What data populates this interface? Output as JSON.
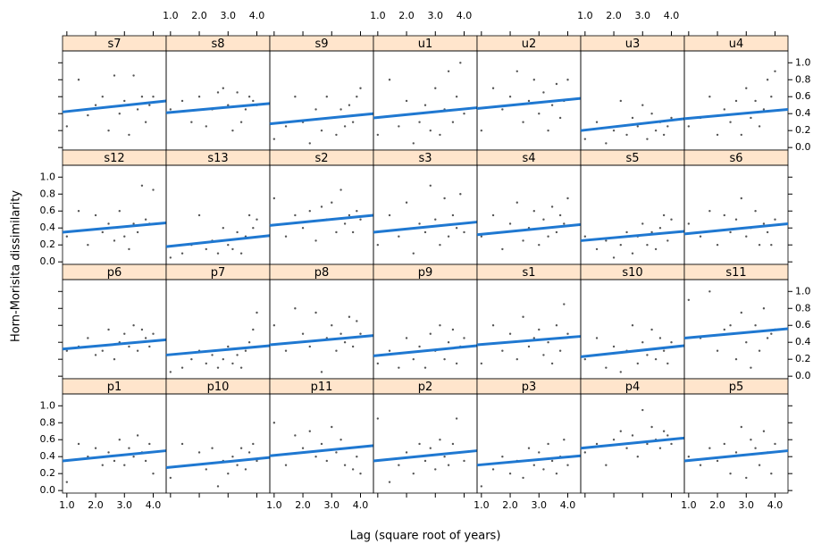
{
  "xlabel": "Lag (square root of years)",
  "ylabel": "Horn-Morisita dissimilarity",
  "xlim": [
    0.85,
    4.45
  ],
  "ylim": [
    -0.03,
    1.14
  ],
  "xticks": [
    {
      "value": 1,
      "label": "1.0"
    },
    {
      "value": 2,
      "label": "2.0"
    },
    {
      "value": 3,
      "label": "3.0"
    },
    {
      "value": 4,
      "label": "4.0"
    }
  ],
  "yticks": [
    {
      "value": 0,
      "label": "0.0"
    },
    {
      "value": 0.2,
      "label": "0.2"
    },
    {
      "value": 0.4,
      "label": "0.4"
    },
    {
      "value": 0.6,
      "label": "0.6"
    },
    {
      "value": 0.8,
      "label": "0.8"
    },
    {
      "value": 1,
      "label": "1.0"
    }
  ],
  "x": [
    1,
    1.41,
    1.73,
    2,
    2.24,
    2.45,
    2.65,
    2.83,
    3,
    3.16,
    3.32,
    3.46,
    3.61,
    3.74,
    3.87,
    4
  ],
  "line_x": [
    0.85,
    4.45
  ],
  "point_color": "#555555",
  "line_color": "#1f78d1",
  "chart_data": [
    {
      "type": "scatter",
      "title": "s7",
      "values": [
        0.25,
        0.8,
        0.38,
        0.5,
        0.6,
        0.2,
        0.85,
        0.4,
        0.55,
        0.15,
        0.85,
        0.45,
        0.6,
        0.3,
        0.5,
        0.6
      ],
      "line": [
        0.42,
        0.55
      ]
    },
    {
      "type": "scatter",
      "title": "s8",
      "values": [
        0.45,
        0.55,
        0.3,
        0.6,
        0.25,
        0.45,
        0.65,
        0.7,
        0.5,
        0.2,
        0.65,
        0.3,
        0.45,
        0.6,
        0.55,
        0.5
      ],
      "line": [
        0.41,
        0.52
      ]
    },
    {
      "type": "scatter",
      "title": "s9",
      "values": [
        0.1,
        0.25,
        0.6,
        0.3,
        0.05,
        0.45,
        0.2,
        0.6,
        0.35,
        0.15,
        0.45,
        0.25,
        0.5,
        0.3,
        0.6,
        0.7
      ],
      "line": [
        0.28,
        0.4
      ]
    },
    {
      "type": "scatter",
      "title": "u1",
      "values": [
        0.15,
        0.8,
        0.25,
        0.55,
        0.05,
        0.3,
        0.5,
        0.2,
        0.7,
        0.15,
        0.45,
        0.9,
        0.3,
        0.6,
        1.0,
        0.4
      ],
      "line": [
        0.35,
        0.47
      ]
    },
    {
      "type": "scatter",
      "title": "u2",
      "values": [
        0.2,
        0.7,
        0.45,
        0.6,
        0.9,
        0.3,
        0.55,
        0.8,
        0.4,
        0.65,
        0.2,
        0.5,
        0.75,
        0.35,
        0.55,
        0.8
      ],
      "line": [
        0.46,
        0.58
      ]
    },
    {
      "type": "scatter",
      "title": "u3",
      "values": [
        0.1,
        0.3,
        0.05,
        0.2,
        0.55,
        0.15,
        0.35,
        0.25,
        0.5,
        0.1,
        0.4,
        0.2,
        0.3,
        0.15,
        0.25,
        0.35
      ],
      "line": [
        0.2,
        0.34
      ]
    },
    {
      "type": "scatter",
      "title": "u4",
      "values": [
        0.25,
        0.35,
        0.6,
        0.15,
        0.45,
        0.3,
        0.55,
        0.15,
        0.7,
        0.35,
        0.55,
        0.25,
        0.45,
        0.8,
        0.6,
        0.9
      ],
      "line": [
        0.34,
        0.45
      ]
    },
    {
      "type": "scatter",
      "title": "s12",
      "values": [
        0.3,
        0.6,
        0.2,
        0.55,
        0.35,
        0.45,
        0.25,
        0.6,
        0.3,
        0.15,
        0.45,
        0.35,
        0.9,
        0.5,
        0.45,
        0.85
      ],
      "line": [
        0.35,
        0.46
      ]
    },
    {
      "type": "scatter",
      "title": "s13",
      "values": [
        0.05,
        0.1,
        0.2,
        0.55,
        0.15,
        0.25,
        0.1,
        0.4,
        0.2,
        0.15,
        0.35,
        0.1,
        0.3,
        0.55,
        0.4,
        0.5
      ],
      "line": [
        0.18,
        0.31
      ]
    },
    {
      "type": "scatter",
      "title": "s2",
      "values": [
        0.75,
        0.3,
        0.55,
        0.4,
        0.6,
        0.25,
        0.65,
        0.5,
        0.7,
        0.35,
        0.85,
        0.45,
        0.55,
        0.35,
        0.6,
        0.5
      ],
      "line": [
        0.43,
        0.55
      ]
    },
    {
      "type": "scatter",
      "title": "s3",
      "values": [
        0.2,
        0.55,
        0.3,
        0.7,
        0.1,
        0.45,
        0.35,
        0.9,
        0.5,
        0.2,
        0.75,
        0.3,
        0.55,
        0.4,
        0.8,
        0.35
      ],
      "line": [
        0.35,
        0.47
      ]
    },
    {
      "type": "scatter",
      "title": "s4",
      "values": [
        0.3,
        0.55,
        0.15,
        0.45,
        0.7,
        0.25,
        0.4,
        0.6,
        0.2,
        0.5,
        0.3,
        0.65,
        0.35,
        0.55,
        0.45,
        0.75
      ],
      "line": [
        0.32,
        0.44
      ]
    },
    {
      "type": "scatter",
      "title": "s5",
      "values": [
        0.3,
        0.15,
        0.25,
        0.05,
        0.2,
        0.35,
        0.1,
        0.3,
        0.45,
        0.2,
        0.35,
        0.15,
        0.4,
        0.55,
        0.25,
        0.5
      ],
      "line": [
        0.25,
        0.36
      ]
    },
    {
      "type": "scatter",
      "title": "s6",
      "values": [
        0.45,
        0.3,
        0.6,
        0.2,
        0.55,
        0.35,
        0.5,
        0.75,
        0.3,
        0.4,
        0.6,
        0.2,
        0.45,
        0.35,
        0.2,
        0.5
      ],
      "line": [
        0.33,
        0.45
      ]
    },
    {
      "type": "scatter",
      "title": "p6",
      "values": [
        0.3,
        0.35,
        0.45,
        0.25,
        0.3,
        0.55,
        0.2,
        0.4,
        0.5,
        0.35,
        0.6,
        0.3,
        0.55,
        0.45,
        0.35,
        0.5
      ],
      "line": [
        0.32,
        0.43
      ]
    },
    {
      "type": "scatter",
      "title": "p7",
      "values": [
        0.05,
        0.1,
        0.2,
        0.3,
        0.15,
        0.25,
        0.1,
        0.2,
        0.35,
        0.15,
        0.25,
        0.1,
        0.3,
        0.4,
        0.55,
        0.75
      ],
      "line": [
        0.25,
        0.36
      ]
    },
    {
      "type": "scatter",
      "title": "p8",
      "values": [
        0.6,
        0.3,
        0.8,
        0.5,
        0.35,
        0.75,
        0.05,
        0.45,
        0.6,
        0.3,
        0.5,
        0.4,
        0.7,
        0.35,
        0.65,
        0.5
      ],
      "line": [
        0.37,
        0.48
      ]
    },
    {
      "type": "scatter",
      "title": "p9",
      "values": [
        0.15,
        0.3,
        0.1,
        0.45,
        0.2,
        0.35,
        0.1,
        0.5,
        0.3,
        0.6,
        0.2,
        0.4,
        0.55,
        0.15,
        0.35,
        0.45
      ],
      "line": [
        0.24,
        0.36
      ]
    },
    {
      "type": "scatter",
      "title": "s1",
      "values": [
        0.15,
        0.6,
        0.3,
        0.5,
        0.2,
        0.7,
        0.35,
        0.45,
        0.55,
        0.25,
        0.4,
        0.15,
        0.6,
        0.3,
        0.85,
        0.5
      ],
      "line": [
        0.37,
        0.47
      ]
    },
    {
      "type": "scatter",
      "title": "s10",
      "values": [
        0.2,
        0.45,
        0.1,
        0.35,
        0.05,
        0.3,
        0.6,
        0.15,
        0.4,
        0.25,
        0.55,
        0.2,
        0.45,
        0.3,
        0.15,
        0.4
      ],
      "line": [
        0.23,
        0.36
      ]
    },
    {
      "type": "scatter",
      "title": "s11",
      "values": [
        0.9,
        0.45,
        1.0,
        0.3,
        0.55,
        0.6,
        0.2,
        0.75,
        0.4,
        0.1,
        0.6,
        0.3,
        0.8,
        0.45,
        0.5,
        0.55
      ],
      "line": [
        0.45,
        0.56
      ]
    },
    {
      "type": "scatter",
      "title": "p1",
      "values": [
        0.1,
        0.55,
        0.4,
        0.5,
        0.3,
        0.45,
        0.35,
        0.6,
        0.3,
        0.5,
        0.4,
        0.65,
        0.45,
        0.35,
        0.55,
        0.2
      ],
      "line": [
        0.35,
        0.47
      ]
    },
    {
      "type": "scatter",
      "title": "p10",
      "values": [
        0.15,
        0.55,
        0.3,
        0.45,
        0.25,
        0.5,
        0.05,
        0.35,
        0.2,
        0.4,
        0.3,
        0.5,
        0.25,
        0.45,
        0.55,
        0.35
      ],
      "line": [
        0.27,
        0.39
      ]
    },
    {
      "type": "scatter",
      "title": "p11",
      "values": [
        0.8,
        0.3,
        0.65,
        0.5,
        0.7,
        0.4,
        0.55,
        0.35,
        0.75,
        0.45,
        0.6,
        0.3,
        0.5,
        0.25,
        0.4,
        0.2
      ],
      "line": [
        0.41,
        0.53
      ]
    },
    {
      "type": "scatter",
      "title": "p2",
      "values": [
        0.85,
        0.1,
        0.3,
        0.45,
        0.2,
        0.55,
        0.35,
        0.5,
        0.25,
        0.6,
        0.4,
        0.3,
        0.55,
        0.85,
        0.45,
        0.35
      ],
      "line": [
        0.35,
        0.47
      ]
    },
    {
      "type": "scatter",
      "title": "p3",
      "values": [
        0.05,
        0.25,
        0.4,
        0.2,
        0.35,
        0.15,
        0.5,
        0.3,
        0.45,
        0.25,
        0.55,
        0.35,
        0.2,
        0.4,
        0.6,
        0.3
      ],
      "line": [
        0.3,
        0.41
      ]
    },
    {
      "type": "scatter",
      "title": "p4",
      "values": [
        0.45,
        0.55,
        0.3,
        0.6,
        0.7,
        0.5,
        0.65,
        0.4,
        0.95,
        0.55,
        0.75,
        0.6,
        0.5,
        0.7,
        0.65,
        0.55
      ],
      "line": [
        0.5,
        0.62
      ]
    },
    {
      "type": "scatter",
      "title": "p5",
      "values": [
        0.4,
        0.3,
        0.5,
        0.35,
        0.55,
        0.2,
        0.45,
        0.75,
        0.15,
        0.6,
        0.5,
        0.3,
        0.7,
        0.45,
        0.2,
        0.55
      ],
      "line": [
        0.35,
        0.47
      ]
    }
  ]
}
